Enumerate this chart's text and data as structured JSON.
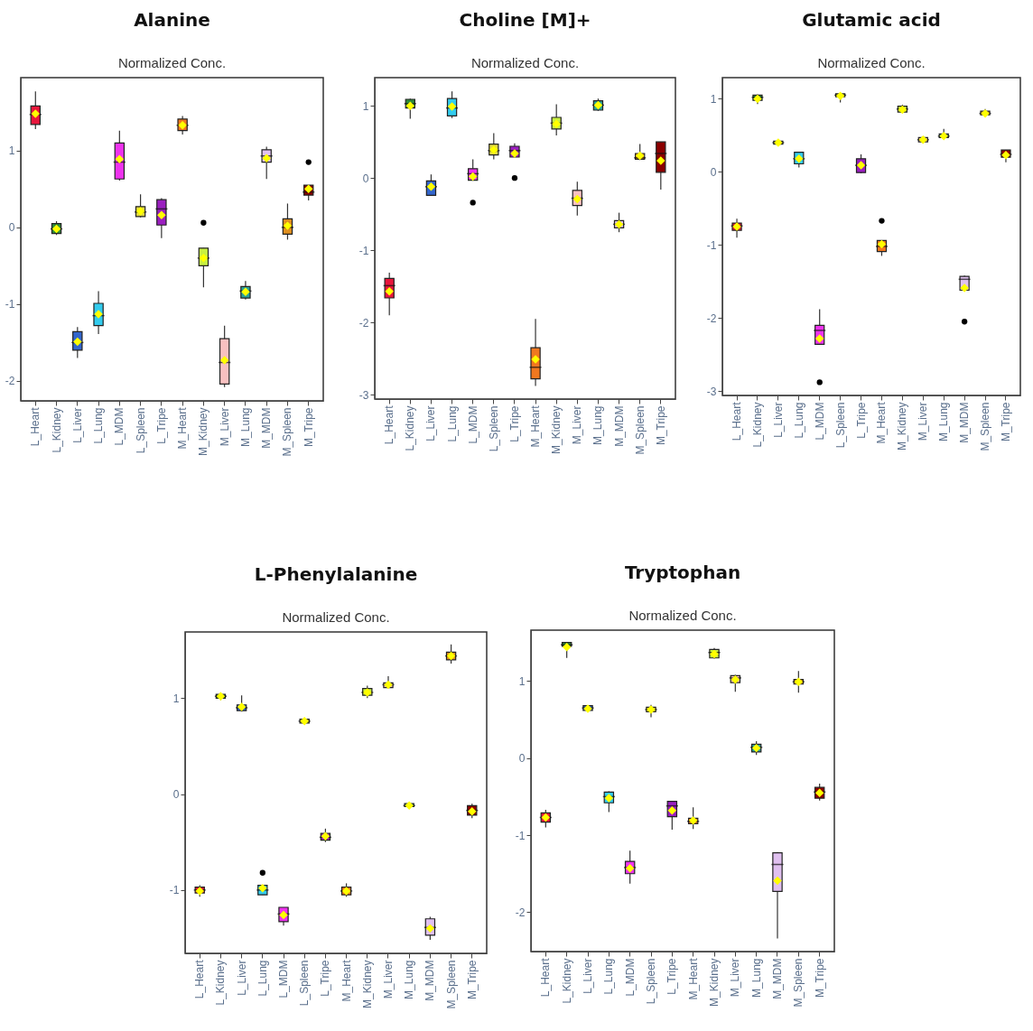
{
  "chart_data": [
    {
      "type": "box",
      "title": "Alanine",
      "subtitle": "Normalized Conc.",
      "categories": [
        "L_Heart",
        "L_Kidney",
        "L_Liver",
        "L_Lung",
        "L_MDM",
        "L_Spleen",
        "L_Tripe",
        "M_Heart",
        "M_Kidney",
        "M_Liver",
        "M_Lung",
        "M_MDM",
        "M_Spleen",
        "M_Tripe"
      ],
      "colors": [
        "#e8163c",
        "#2e8b3a",
        "#3366cc",
        "#33ccee",
        "#ee33ee",
        "#e0d840",
        "#9b1fc0",
        "#f07820",
        "#c8f040",
        "#f8c0c0",
        "#2aa198",
        "#e0c0f0",
        "#e09020",
        "#8b0000"
      ],
      "ylim": [
        -2.26,
        1.95
      ],
      "yticks": [
        -2,
        -1,
        0,
        1
      ],
      "boxes": [
        {
          "low": 1.28,
          "q1": 1.34,
          "median": 1.47,
          "q3": 1.58,
          "high": 1.77,
          "mean": 1.48
        },
        {
          "low": -0.1,
          "q1": -0.08,
          "median": -0.02,
          "q3": 0.05,
          "high": 0.08,
          "mean": -0.02
        },
        {
          "low": -1.7,
          "q1": -1.6,
          "median": -1.5,
          "q3": -1.36,
          "high": -1.3,
          "mean": -1.49
        },
        {
          "low": -1.39,
          "q1": -1.28,
          "median": -1.15,
          "q3": -0.99,
          "high": -0.83,
          "mean": -1.13
        },
        {
          "low": 0.61,
          "q1": 0.63,
          "median": 0.85,
          "q3": 1.1,
          "high": 1.26,
          "mean": 0.89
        },
        {
          "low": 0.13,
          "q1": 0.14,
          "median": 0.2,
          "q3": 0.27,
          "high": 0.43,
          "mean": 0.21
        },
        {
          "low": -0.14,
          "q1": 0.03,
          "median": 0.24,
          "q3": 0.36,
          "high": 0.38,
          "mean": 0.16
        },
        {
          "low": 1.21,
          "q1": 1.26,
          "median": 1.33,
          "q3": 1.41,
          "high": 1.45,
          "mean": 1.33
        },
        {
          "low": -0.78,
          "q1": -0.5,
          "median": -0.4,
          "q3": -0.27,
          "high": -0.27,
          "mean": -0.4,
          "outliers": [
            0.06
          ]
        },
        {
          "low": -2.08,
          "q1": -2.04,
          "median": -1.76,
          "q3": -1.45,
          "high": -1.28,
          "mean": -1.73
        },
        {
          "low": -0.94,
          "q1": -0.92,
          "median": -0.83,
          "q3": -0.77,
          "high": -0.7,
          "mean": -0.84
        },
        {
          "low": 0.63,
          "q1": 0.85,
          "median": 0.93,
          "q3": 1.01,
          "high": 1.05,
          "mean": 0.9
        },
        {
          "low": -0.16,
          "q1": -0.09,
          "median": 0.0,
          "q3": 0.11,
          "high": 0.31,
          "mean": 0.02
        },
        {
          "low": 0.35,
          "q1": 0.42,
          "median": 0.46,
          "q3": 0.55,
          "high": 0.55,
          "mean": 0.5,
          "outliers": [
            0.85
          ]
        }
      ]
    },
    {
      "type": "box",
      "title": "Choline [M]+",
      "subtitle": "Normalized Conc.",
      "categories": [
        "L_Heart",
        "L_Kidney",
        "L_Liver",
        "L_Lung",
        "L_MDM",
        "L_Spleen",
        "L_Tripe",
        "M_Heart",
        "M_Kidney",
        "M_Liver",
        "M_Lung",
        "M_MDM",
        "M_Spleen",
        "M_Tripe"
      ],
      "colors": [
        "#e8163c",
        "#2e8b3a",
        "#3366cc",
        "#33ccee",
        "#ee33ee",
        "#e0d840",
        "#9b1fc0",
        "#f07820",
        "#c8f040",
        "#f8c0c0",
        "#2aa198",
        "#e0c0f0",
        "#e09020",
        "#8b0000"
      ],
      "ylim": [
        -3.06,
        1.39
      ],
      "yticks": [
        -3,
        -2,
        -1,
        0,
        1
      ],
      "boxes": [
        {
          "low": -1.9,
          "q1": -1.66,
          "median": -1.49,
          "q3": -1.39,
          "high": -1.31,
          "mean": -1.57
        },
        {
          "low": 0.82,
          "q1": 0.97,
          "median": 1.03,
          "q3": 1.09,
          "high": 1.1,
          "mean": 1.0
        },
        {
          "low": -0.24,
          "q1": -0.24,
          "median": -0.12,
          "q3": -0.04,
          "high": 0.05,
          "mean": -0.12
        },
        {
          "low": 0.83,
          "q1": 0.86,
          "median": 0.97,
          "q3": 1.1,
          "high": 1.2,
          "mean": 0.99
        },
        {
          "low": -0.03,
          "q1": -0.03,
          "median": 0.06,
          "q3": 0.13,
          "high": 0.26,
          "mean": 0.02,
          "outliers": [
            -0.34
          ]
        },
        {
          "low": 0.26,
          "q1": 0.32,
          "median": 0.38,
          "q3": 0.47,
          "high": 0.62,
          "mean": 0.39
        },
        {
          "low": 0.29,
          "q1": 0.29,
          "median": 0.38,
          "q3": 0.44,
          "high": 0.48,
          "mean": 0.34,
          "outliers": [
            0.0
          ]
        },
        {
          "low": -2.88,
          "q1": -2.78,
          "median": -2.62,
          "q3": -2.35,
          "high": -1.95,
          "mean": -2.51
        },
        {
          "low": 0.59,
          "q1": 0.68,
          "median": 0.76,
          "q3": 0.84,
          "high": 1.02,
          "mean": 0.75
        },
        {
          "low": -0.52,
          "q1": -0.38,
          "median": -0.28,
          "q3": -0.17,
          "high": -0.05,
          "mean": -0.29
        },
        {
          "low": 0.93,
          "q1": 0.94,
          "median": 1.01,
          "q3": 1.07,
          "high": 1.1,
          "mean": 1.01
        },
        {
          "low": -0.75,
          "q1": -0.69,
          "median": -0.64,
          "q3": -0.59,
          "high": -0.48,
          "mean": -0.64
        },
        {
          "low": 0.25,
          "q1": 0.26,
          "median": 0.28,
          "q3": 0.34,
          "high": 0.47,
          "mean": 0.31
        },
        {
          "low": -0.16,
          "q1": 0.08,
          "median": 0.34,
          "q3": 0.5,
          "high": 0.5,
          "mean": 0.24
        }
      ]
    },
    {
      "type": "box",
      "title": "Glutamic acid",
      "subtitle": "Normalized Conc.",
      "categories": [
        "L_Heart",
        "L_Kidney",
        "L_Liver",
        "L_Lung",
        "L_MDM",
        "L_Spleen",
        "L_Tripe",
        "M_Heart",
        "M_Kidney",
        "M_Liver",
        "M_Lung",
        "M_MDM",
        "M_Spleen",
        "M_Tripe"
      ],
      "colors": [
        "#e8163c",
        "#2e8b3a",
        "#3366cc",
        "#33ccee",
        "#ee33ee",
        "#e0d840",
        "#9b1fc0",
        "#f07820",
        "#c8f040",
        "#f8c0c0",
        "#2aa198",
        "#e0c0f0",
        "#e09020",
        "#8b0000"
      ],
      "ylim": [
        -3.06,
        1.29
      ],
      "yticks": [
        -3,
        -2,
        -1,
        0,
        1
      ],
      "boxes": [
        {
          "low": -0.9,
          "q1": -0.8,
          "median": -0.74,
          "q3": -0.7,
          "high": -0.64,
          "mean": -0.75
        },
        {
          "low": 0.93,
          "q1": 0.98,
          "median": 1.02,
          "q3": 1.05,
          "high": 1.06,
          "mean": 1.0
        },
        {
          "low": 0.37,
          "q1": 0.38,
          "median": 0.4,
          "q3": 0.42,
          "high": 0.43,
          "mean": 0.4
        },
        {
          "low": 0.06,
          "q1": 0.11,
          "median": 0.18,
          "q3": 0.27,
          "high": 0.27,
          "mean": 0.18
        },
        {
          "low": -2.36,
          "q1": -2.36,
          "median": -2.17,
          "q3": -2.1,
          "high": -1.88,
          "mean": -2.28,
          "outliers": [
            -2.88
          ]
        },
        {
          "low": 0.95,
          "q1": 1.03,
          "median": 1.05,
          "q3": 1.07,
          "high": 1.08,
          "mean": 1.04
        },
        {
          "low": -0.02,
          "q1": -0.01,
          "median": 0.09,
          "q3": 0.18,
          "high": 0.24,
          "mean": 0.09
        },
        {
          "low": -1.15,
          "q1": -1.09,
          "median": -1.02,
          "q3": -0.94,
          "high": -0.94,
          "mean": -0.99,
          "outliers": [
            -0.67
          ]
        },
        {
          "low": 0.81,
          "q1": 0.82,
          "median": 0.86,
          "q3": 0.9,
          "high": 0.92,
          "mean": 0.85
        },
        {
          "low": 0.39,
          "q1": 0.41,
          "median": 0.44,
          "q3": 0.47,
          "high": 0.48,
          "mean": 0.44
        },
        {
          "low": 0.47,
          "q1": 0.47,
          "median": 0.49,
          "q3": 0.52,
          "high": 0.59,
          "mean": 0.49
        },
        {
          "low": -1.62,
          "q1": -1.62,
          "median": -1.47,
          "q3": -1.43,
          "high": -1.42,
          "mean": -1.59,
          "outliers": [
            -2.05
          ]
        },
        {
          "low": 0.77,
          "q1": 0.78,
          "median": 0.8,
          "q3": 0.83,
          "high": 0.86,
          "mean": 0.8
        },
        {
          "low": 0.13,
          "q1": 0.2,
          "median": 0.24,
          "q3": 0.3,
          "high": 0.3,
          "mean": 0.23
        }
      ]
    },
    {
      "type": "box",
      "title": "L-Phenylalanine",
      "subtitle": "Normalized Conc.",
      "categories": [
        "L_Heart",
        "L_Kidney",
        "L_Liver",
        "L_Lung",
        "L_MDM",
        "L_Spleen",
        "L_Tripe",
        "M_Heart",
        "M_Kidney",
        "M_Liver",
        "M_Lung",
        "M_MDM",
        "M_Spleen",
        "M_Tripe"
      ],
      "colors": [
        "#e8163c",
        "#2e8b3a",
        "#3366cc",
        "#33ccee",
        "#ee33ee",
        "#e0d840",
        "#9b1fc0",
        "#f07820",
        "#c8f040",
        "#f8c0c0",
        "#2aa198",
        "#e0c0f0",
        "#e09020",
        "#8b0000"
      ],
      "ylim": [
        -1.66,
        1.69
      ],
      "yticks": [
        -1,
        0,
        1
      ],
      "boxes": [
        {
          "low": -1.07,
          "q1": -1.03,
          "median": -1.0,
          "q3": -0.97,
          "high": -0.95,
          "mean": -1.01
        },
        {
          "low": 0.98,
          "q1": 1.0,
          "median": 1.02,
          "q3": 1.04,
          "high": 1.06,
          "mean": 1.02
        },
        {
          "low": 0.86,
          "q1": 0.87,
          "median": 0.9,
          "q3": 0.93,
          "high": 1.03,
          "mean": 0.91
        },
        {
          "low": -1.05,
          "q1": -1.05,
          "median": -1.0,
          "q3": -0.95,
          "high": -0.95,
          "mean": -0.98,
          "outliers": [
            -0.82
          ]
        },
        {
          "low": -1.37,
          "q1": -1.33,
          "median": -1.25,
          "q3": -1.18,
          "high": -1.18,
          "mean": -1.26
        },
        {
          "low": 0.74,
          "q1": 0.74,
          "median": 0.76,
          "q3": 0.78,
          "high": 0.79,
          "mean": 0.76
        },
        {
          "low": -0.5,
          "q1": -0.48,
          "median": -0.45,
          "q3": -0.41,
          "high": -0.36,
          "mean": -0.44
        },
        {
          "low": -1.07,
          "q1": -1.05,
          "median": -1.01,
          "q3": -0.97,
          "high": -0.93,
          "mean": -1.01
        },
        {
          "low": 1.0,
          "q1": 1.03,
          "median": 1.06,
          "q3": 1.1,
          "high": 1.13,
          "mean": 1.06
        },
        {
          "low": 1.11,
          "q1": 1.11,
          "median": 1.14,
          "q3": 1.16,
          "high": 1.23,
          "mean": 1.14
        },
        {
          "low": -0.14,
          "q1": -0.13,
          "median": -0.12,
          "q3": -0.1,
          "high": -0.09,
          "mean": -0.12
        },
        {
          "low": -1.52,
          "q1": -1.47,
          "median": -1.39,
          "q3": -1.3,
          "high": -1.28,
          "mean": -1.4
        },
        {
          "low": 1.36,
          "q1": 1.4,
          "median": 1.44,
          "q3": 1.48,
          "high": 1.56,
          "mean": 1.44
        },
        {
          "low": -0.25,
          "q1": -0.22,
          "median": -0.17,
          "q3": -0.12,
          "high": -0.1,
          "mean": -0.18
        }
      ]
    },
    {
      "type": "box",
      "title": "Tryptophan",
      "subtitle": "Normalized Conc.",
      "categories": [
        "L_Heart",
        "L_Kidney",
        "L_Liver",
        "L_Lung",
        "L_MDM",
        "L_Spleen",
        "L_Tripe",
        "M_Heart",
        "M_Kidney",
        "M_Liver",
        "M_Lung",
        "M_MDM",
        "M_Spleen",
        "M_Tripe"
      ],
      "colors": [
        "#e8163c",
        "#2e8b3a",
        "#3366cc",
        "#33ccee",
        "#ee33ee",
        "#e0d840",
        "#9b1fc0",
        "#f07820",
        "#c8f040",
        "#f8c0c0",
        "#2aa198",
        "#e0c0f0",
        "#e09020",
        "#8b0000"
      ],
      "ylim": [
        -2.51,
        1.66
      ],
      "yticks": [
        -2,
        -1,
        0,
        1
      ],
      "boxes": [
        {
          "low": -0.9,
          "q1": -0.83,
          "median": -0.77,
          "q3": -0.71,
          "high": -0.67,
          "mean": -0.77
        },
        {
          "low": 1.3,
          "q1": 1.45,
          "median": 1.47,
          "q3": 1.5,
          "high": 1.5,
          "mean": 1.44
        },
        {
          "low": 0.6,
          "q1": 0.62,
          "median": 0.65,
          "q3": 0.68,
          "high": 0.68,
          "mean": 0.64
        },
        {
          "low": -0.7,
          "q1": -0.58,
          "median": -0.5,
          "q3": -0.44,
          "high": -0.43,
          "mean": -0.52
        },
        {
          "low": -1.63,
          "q1": -1.5,
          "median": -1.42,
          "q3": -1.34,
          "high": -1.2,
          "mean": -1.43
        },
        {
          "low": 0.53,
          "q1": 0.6,
          "median": 0.63,
          "q3": 0.66,
          "high": 0.69,
          "mean": 0.63
        },
        {
          "low": -0.93,
          "q1": -0.76,
          "median": -0.62,
          "q3": -0.56,
          "high": -0.56,
          "mean": -0.68
        },
        {
          "low": -0.92,
          "q1": -0.85,
          "median": -0.82,
          "q3": -0.78,
          "high": -0.64,
          "mean": -0.81
        },
        {
          "low": 1.29,
          "q1": 1.3,
          "median": 1.37,
          "q3": 1.41,
          "high": 1.43,
          "mean": 1.35
        },
        {
          "low": 0.86,
          "q1": 0.98,
          "median": 1.04,
          "q3": 1.07,
          "high": 1.08,
          "mean": 1.02
        },
        {
          "low": 0.04,
          "q1": 0.08,
          "median": 0.14,
          "q3": 0.18,
          "high": 0.22,
          "mean": 0.13
        },
        {
          "low": -2.34,
          "q1": -1.73,
          "median": -1.38,
          "q3": -1.23,
          "high": -1.22,
          "mean": -1.59
        },
        {
          "low": 0.85,
          "q1": 0.96,
          "median": 0.99,
          "q3": 1.02,
          "high": 1.13,
          "mean": 0.99
        },
        {
          "low": -0.55,
          "q1": -0.52,
          "median": -0.44,
          "q3": -0.38,
          "high": -0.33,
          "mean": -0.45
        }
      ]
    }
  ]
}
